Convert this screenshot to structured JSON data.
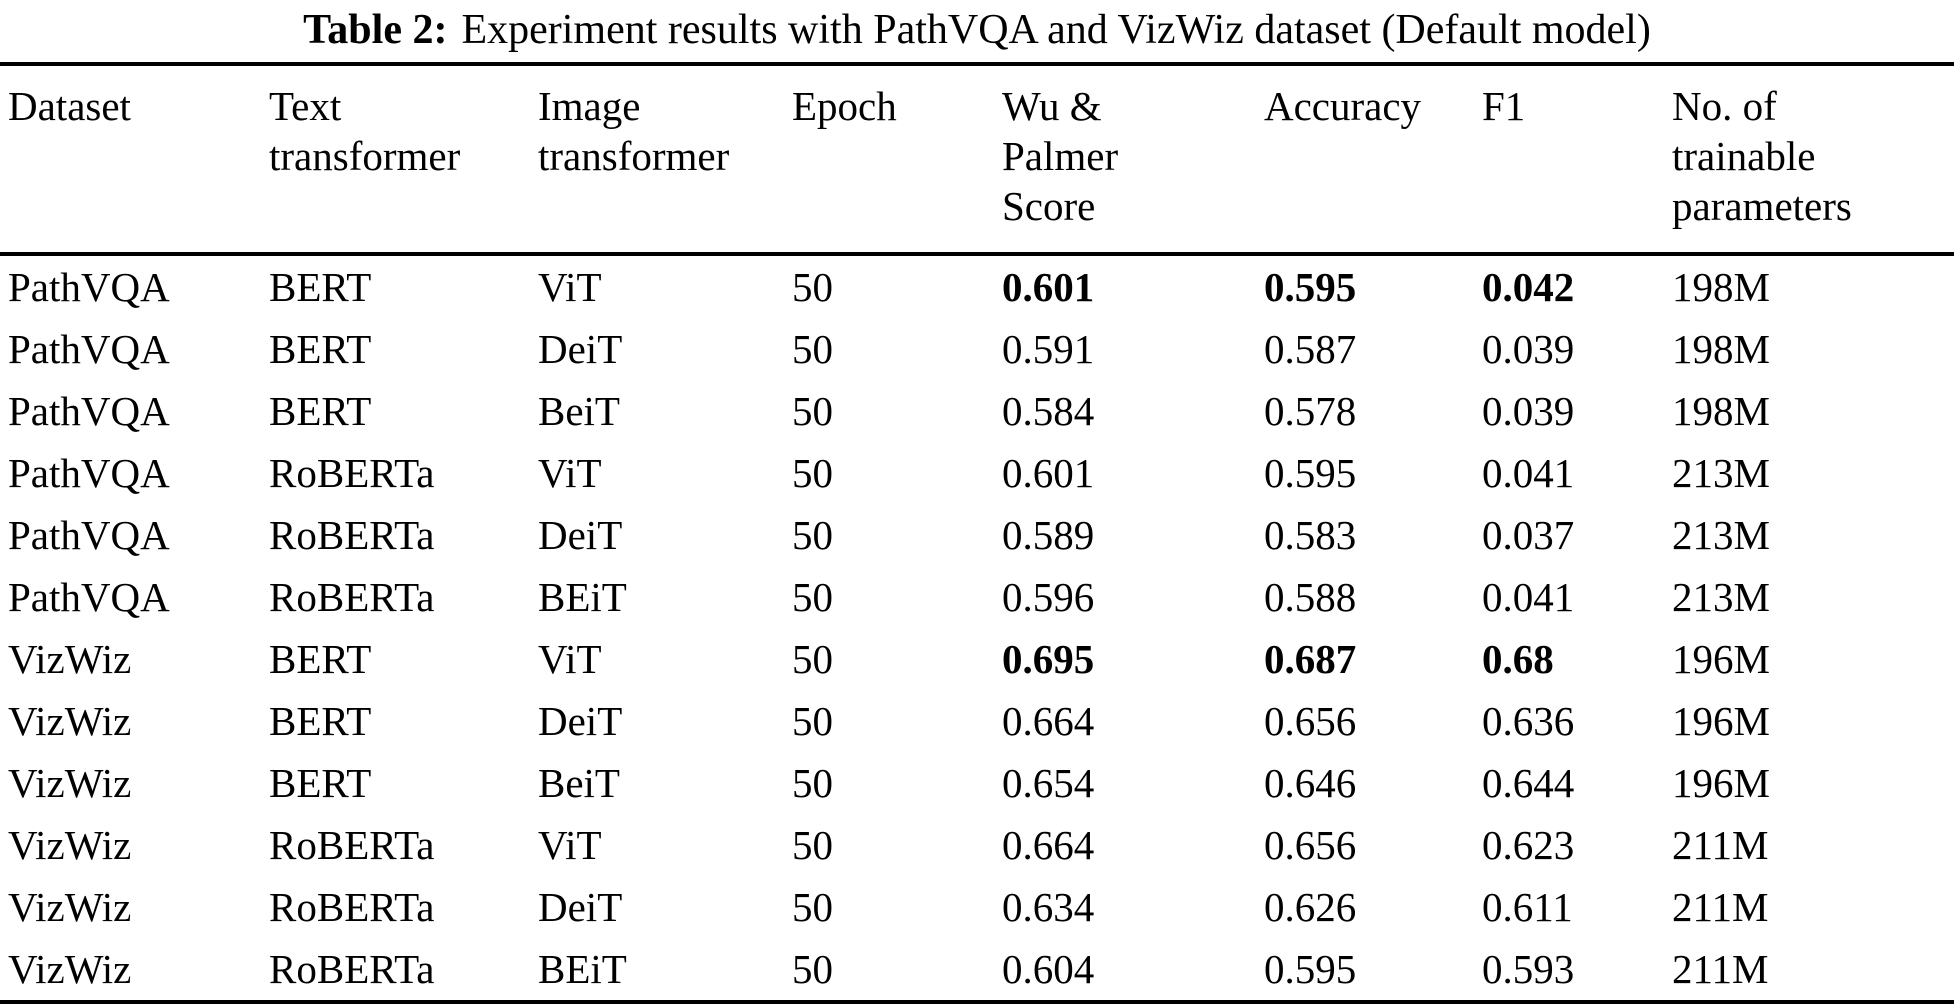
{
  "caption": {
    "label": "Table 2:",
    "text": "Experiment results with PathVQA and VizWiz dataset (Default model)"
  },
  "table": {
    "columns": [
      "Dataset",
      "Text transformer",
      "Image transformer",
      "Epoch",
      "Wu & Palmer Score",
      "Accuracy",
      "F1",
      "No. of trainable parameters"
    ],
    "rows": [
      {
        "cells": [
          "PathVQA",
          "BERT",
          "ViT",
          "50",
          "0.601",
          "0.595",
          "0.042",
          "198M"
        ],
        "bold_cells": [
          4,
          5,
          6
        ]
      },
      {
        "cells": [
          "PathVQA",
          "BERT",
          "DeiT",
          "50",
          "0.591",
          "0.587",
          "0.039",
          "198M"
        ],
        "bold_cells": []
      },
      {
        "cells": [
          "PathVQA",
          "BERT",
          "BeiT",
          "50",
          "0.584",
          "0.578",
          "0.039",
          "198M"
        ],
        "bold_cells": []
      },
      {
        "cells": [
          "PathVQA",
          "RoBERTa",
          "ViT",
          "50",
          "0.601",
          "0.595",
          "0.041",
          "213M"
        ],
        "bold_cells": []
      },
      {
        "cells": [
          "PathVQA",
          "RoBERTa",
          "DeiT",
          "50",
          "0.589",
          "0.583",
          "0.037",
          "213M"
        ],
        "bold_cells": []
      },
      {
        "cells": [
          "PathVQA",
          "RoBERTa",
          "BEiT",
          "50",
          "0.596",
          "0.588",
          "0.041",
          "213M"
        ],
        "bold_cells": []
      },
      {
        "cells": [
          "VizWiz",
          "BERT",
          "ViT",
          "50",
          "0.695",
          "0.687",
          "0.68",
          "196M"
        ],
        "bold_cells": [
          4,
          5,
          6
        ]
      },
      {
        "cells": [
          "VizWiz",
          "BERT",
          "DeiT",
          "50",
          "0.664",
          "0.656",
          "0.636",
          "196M"
        ],
        "bold_cells": []
      },
      {
        "cells": [
          "VizWiz",
          "BERT",
          "BeiT",
          "50",
          "0.654",
          "0.646",
          "0.644",
          "196M"
        ],
        "bold_cells": []
      },
      {
        "cells": [
          "VizWiz",
          "RoBERTa",
          "ViT",
          "50",
          "0.664",
          "0.656",
          "0.623",
          "211M"
        ],
        "bold_cells": []
      },
      {
        "cells": [
          "VizWiz",
          "RoBERTa",
          "DeiT",
          "50",
          "0.634",
          "0.626",
          "0.611",
          "211M"
        ],
        "bold_cells": []
      },
      {
        "cells": [
          "VizWiz",
          "RoBERTa",
          "BEiT",
          "50",
          "0.604",
          "0.595",
          "0.593",
          "211M"
        ],
        "bold_cells": []
      }
    ]
  },
  "colors": {
    "text": "#000000",
    "background": "#ffffff",
    "rule": "#000000"
  }
}
